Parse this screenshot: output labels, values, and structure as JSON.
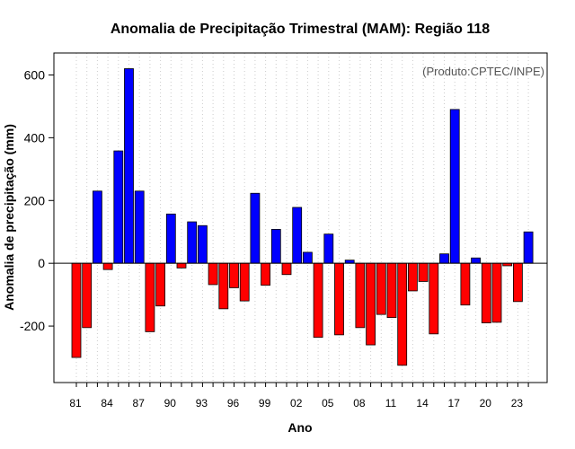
{
  "chart_data": {
    "type": "bar",
    "title": "Anomalia de Precipitação Trimestral (MAM): Região 118",
    "xlabel": "Ano",
    "ylabel": "Anomalia de precipitação (mm)",
    "annotation": "(Produto:CPTEC/INPE)",
    "ylim": [
      -380,
      670
    ],
    "yticks": [
      -200,
      0,
      200,
      400,
      600
    ],
    "ytick_labels": [
      "-200",
      "0",
      "200",
      "400",
      "600"
    ],
    "years": [
      1981,
      1982,
      1983,
      1984,
      1985,
      1986,
      1987,
      1988,
      1989,
      1990,
      1991,
      1992,
      1993,
      1994,
      1995,
      1996,
      1997,
      1998,
      1999,
      2000,
      2001,
      2002,
      2003,
      2004,
      2005,
      2006,
      2007,
      2008,
      2009,
      2010,
      2011,
      2012,
      2013,
      2014,
      2015,
      2016,
      2017,
      2018,
      2019,
      2020,
      2021,
      2022,
      2023,
      2024
    ],
    "values": [
      -300,
      -205,
      230,
      -20,
      358,
      620,
      230,
      -218,
      -136,
      157,
      -15,
      132,
      120,
      -68,
      -145,
      -78,
      -120,
      223,
      -70,
      108,
      -36,
      178,
      35,
      -236,
      93,
      -228,
      10,
      -205,
      -260,
      -163,
      -173,
      -325,
      -88,
      -58,
      -225,
      30,
      490,
      -133,
      17,
      -190,
      -188,
      -8,
      -122,
      100
    ],
    "xtick_labels": [
      "81",
      "84",
      "87",
      "90",
      "93",
      "96",
      "99",
      "02",
      "05",
      "08",
      "11",
      "14",
      "17",
      "20",
      "23"
    ],
    "colors": {
      "positive": "#0000ff",
      "negative": "#ff0000",
      "outline": "#000000",
      "grid": "#cccccc"
    },
    "grid": true
  }
}
